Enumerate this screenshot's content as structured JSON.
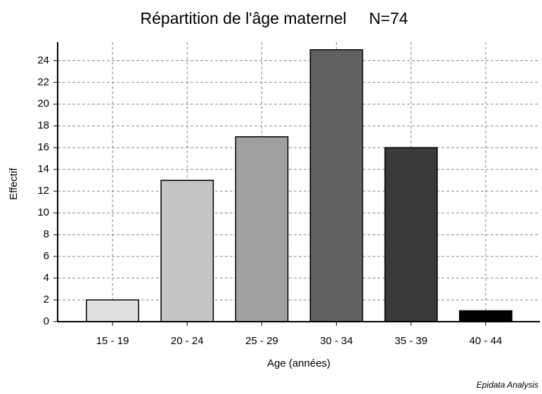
{
  "chart_data": {
    "type": "bar",
    "title": "Répartition de l'âge maternel     N=74",
    "x_label": "Age (années)",
    "y_label": "Effectif",
    "footer": "Epidata Analysis",
    "categories": [
      "15 - 19",
      "20 - 24",
      "25 - 29",
      "30 - 34",
      "35 - 39",
      "40 - 44"
    ],
    "values": [
      2,
      13,
      17,
      25,
      16,
      1
    ],
    "colors": [
      "#e0e0e0",
      "#c4c4c4",
      "#a0a0a0",
      "#606060",
      "#3a3a3a",
      "#000000"
    ],
    "ylim": [
      0,
      25.7
    ],
    "yticks": [
      0,
      2,
      4,
      6,
      8,
      10,
      12,
      14,
      16,
      18,
      20,
      22,
      24
    ],
    "grid": true
  }
}
